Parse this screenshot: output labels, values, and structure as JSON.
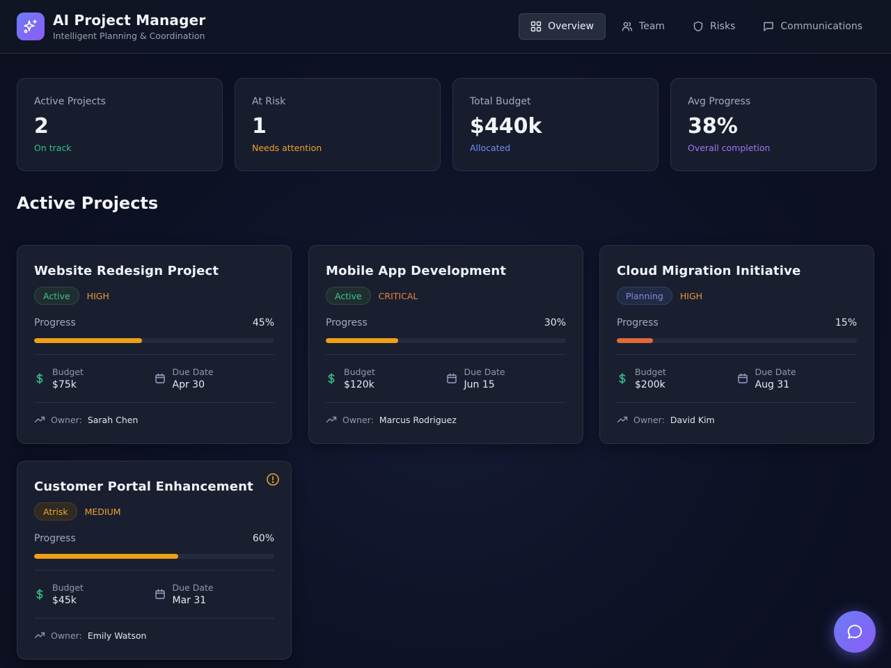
{
  "app": {
    "title": "AI Project Manager",
    "subtitle": "Intelligent Planning & Coordination",
    "icon": "sparkles-icon"
  },
  "nav": [
    {
      "label": "Overview",
      "icon": "grid-icon",
      "active": true
    },
    {
      "label": "Team",
      "icon": "users-icon",
      "active": false
    },
    {
      "label": "Risks",
      "icon": "shield-icon",
      "active": false
    },
    {
      "label": "Communications",
      "icon": "message-icon",
      "active": false
    }
  ],
  "stats": [
    {
      "label": "Active Projects",
      "value": "2",
      "note": "On track",
      "note_color": "#34c08a"
    },
    {
      "label": "At Risk",
      "value": "1",
      "note": "Needs attention",
      "note_color": "#f0a12a"
    },
    {
      "label": "Total Budget",
      "value": "$440k",
      "note": "Allocated",
      "note_color": "#6e8cf7"
    },
    {
      "label": "Avg Progress",
      "value": "38%",
      "note": "Overall completion",
      "note_color": "#9a7cf5"
    }
  ],
  "section_title": "Active Projects",
  "labels": {
    "progress": "Progress",
    "budget": "Budget",
    "due_date": "Due Date",
    "owner": "Owner:"
  },
  "projects": [
    {
      "title": "Website Redesign Project",
      "status": "Active",
      "priority": "HIGH",
      "progress": 45,
      "progress_label": "45%",
      "budget": "$75k",
      "due": "Apr 30",
      "owner": "Sarah Chen",
      "bar_color": "#f0a015",
      "alert": false
    },
    {
      "title": "Mobile App Development",
      "status": "Active",
      "priority": "CRITICAL",
      "progress": 30,
      "progress_label": "30%",
      "budget": "$120k",
      "due": "Jun 15",
      "owner": "Marcus Rodriguez",
      "bar_color": "#f0a015",
      "alert": false
    },
    {
      "title": "Cloud Migration Initiative",
      "status": "Planning",
      "priority": "HIGH",
      "progress": 15,
      "progress_label": "15%",
      "budget": "$200k",
      "due": "Aug 31",
      "owner": "David Kim",
      "bar_color": "#e0693a",
      "alert": false
    },
    {
      "title": "Customer Portal Enhancement",
      "status": "Atrisk",
      "priority": "MEDIUM",
      "progress": 60,
      "progress_label": "60%",
      "budget": "$45k",
      "due": "Mar 31",
      "owner": "Emily Watson",
      "bar_color": "#f0a015",
      "alert": true
    }
  ],
  "colors": {
    "accent": "#7c6ef6",
    "status_active": "#34c08a",
    "status_planning": "#7f8cd8",
    "status_atrisk": "#f0a12a",
    "priority_high": "#e89a3c",
    "priority_critical": "#e8843c",
    "priority_medium": "#f0a12a",
    "money_green": "#34c08a"
  },
  "fab": {
    "icon": "chat-bubble-icon"
  }
}
